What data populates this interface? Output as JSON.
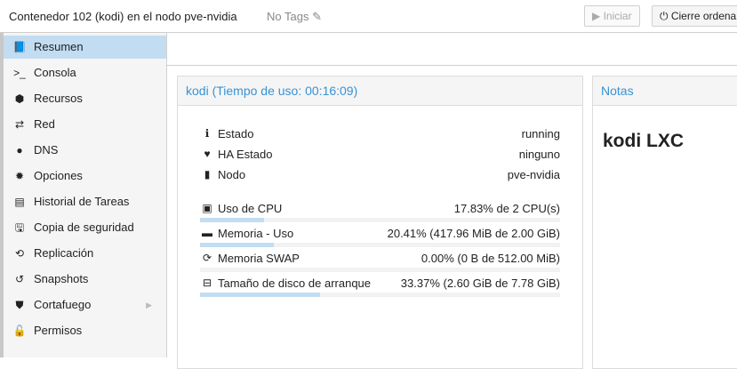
{
  "header": {
    "title": "Contenedor 102 (kodi) en el nodo pve-nvidia",
    "tags": "No Tags",
    "start_label": "Iniciar",
    "shutdown_label": "Cierre ordena"
  },
  "sidebar": {
    "items": [
      {
        "label": "Resumen",
        "icon": "book-icon",
        "selected": true
      },
      {
        "label": "Consola",
        "icon": "terminal-icon"
      },
      {
        "label": "Recursos",
        "icon": "cube-icon"
      },
      {
        "label": "Red",
        "icon": "exchange-icon"
      },
      {
        "label": "DNS",
        "icon": "globe-icon"
      },
      {
        "label": "Opciones",
        "icon": "gear-icon"
      },
      {
        "label": "Historial de Tareas",
        "icon": "list-icon"
      },
      {
        "label": "Copia de seguridad",
        "icon": "floppy-icon"
      },
      {
        "label": "Replicación",
        "icon": "retweet-icon"
      },
      {
        "label": "Snapshots",
        "icon": "history-icon"
      },
      {
        "label": "Cortafuego",
        "icon": "shield-icon",
        "submenu": true
      },
      {
        "label": "Permisos",
        "icon": "unlock-icon"
      }
    ]
  },
  "summary": {
    "title": "kodi (Tiempo de uso: 00:16:09)",
    "info": [
      {
        "label": "Estado",
        "value": "running",
        "icon": "info-icon"
      },
      {
        "label": "HA Estado",
        "value": "ninguno",
        "icon": "heartbeat-icon"
      },
      {
        "label": "Nodo",
        "value": "pve-nvidia",
        "icon": "server-icon"
      }
    ],
    "usage": [
      {
        "label": "Uso de CPU",
        "value": "17.83% de 2 CPU(s)",
        "percent": 17.83,
        "icon": "cpu-icon"
      },
      {
        "label": "Memoria - Uso",
        "value": "20.41% (417.96 MiB de 2.00 GiB)",
        "percent": 20.41,
        "icon": "memory-icon"
      },
      {
        "label": "Memoria SWAP",
        "value": "0.00% (0 B de 512.00 MiB)",
        "percent": 0,
        "icon": "refresh-icon"
      },
      {
        "label": "Tamaño de disco de arranque",
        "value": "33.37% (2.60 GiB de 7.78 GiB)",
        "percent": 33.37,
        "icon": "hdd-icon"
      }
    ]
  },
  "notes": {
    "title": "Notas",
    "content": "kodi LXC"
  },
  "colors": {
    "accent": "#3892d4",
    "selected": "#c2ddf2"
  }
}
